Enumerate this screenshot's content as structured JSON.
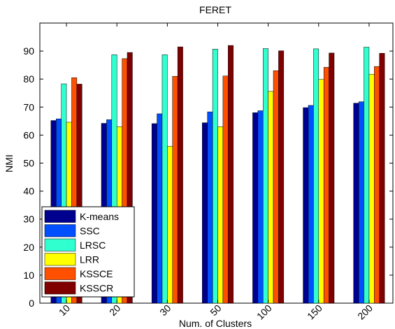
{
  "chart_data": {
    "type": "bar",
    "title": "FERET",
    "xlabel": "Num. of Clusters",
    "ylabel": "NMI",
    "ylim": [
      0,
      100
    ],
    "yticks": [
      0,
      10,
      20,
      30,
      40,
      50,
      60,
      70,
      80,
      90
    ],
    "categories": [
      "10",
      "20",
      "30",
      "50",
      "100",
      "150",
      "200"
    ],
    "legend_position": "bottom-left",
    "grid": false,
    "series": [
      {
        "name": "K-means",
        "color": "#00008F",
        "values": [
          65.2,
          64.2,
          64.1,
          64.4,
          68.0,
          69.8,
          71.4
        ]
      },
      {
        "name": "SSC",
        "color": "#0050FF",
        "values": [
          65.8,
          65.5,
          67.6,
          68.3,
          68.7,
          70.6,
          71.9
        ]
      },
      {
        "name": "LRSC",
        "color": "#30FFCF",
        "values": [
          78.3,
          88.7,
          88.7,
          90.7,
          90.9,
          90.8,
          91.4
        ]
      },
      {
        "name": "LRR",
        "color": "#FFFF00",
        "values": [
          64.6,
          63.0,
          56.0,
          63.0,
          75.6,
          79.9,
          81.7
        ]
      },
      {
        "name": "KSSCE",
        "color": "#FF5000",
        "values": [
          80.5,
          87.3,
          81.0,
          81.1,
          83.0,
          84.2,
          84.5
        ]
      },
      {
        "name": "KSSCR",
        "color": "#800000",
        "values": [
          78.2,
          89.5,
          91.5,
          92.0,
          90.1,
          89.3,
          89.2
        ]
      }
    ]
  }
}
